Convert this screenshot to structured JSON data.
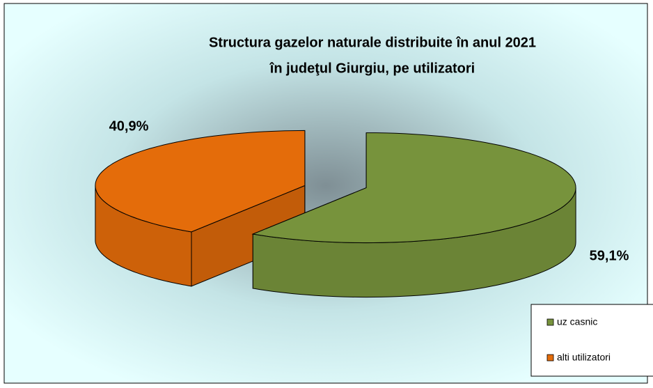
{
  "chart_data": {
    "type": "pie3d",
    "title": [
      "Structura gazelor naturale distribuite în anul 2021",
      "în judeţul Giurgiu, pe utilizatori"
    ],
    "categories": [
      "uz casnic",
      "alti utilizatori"
    ],
    "values": [
      59.1,
      40.9
    ],
    "value_labels": [
      "59,1%",
      "40,9%"
    ],
    "colors": [
      "#77933c",
      "#e46c0a"
    ],
    "legend": "bottom-right"
  }
}
